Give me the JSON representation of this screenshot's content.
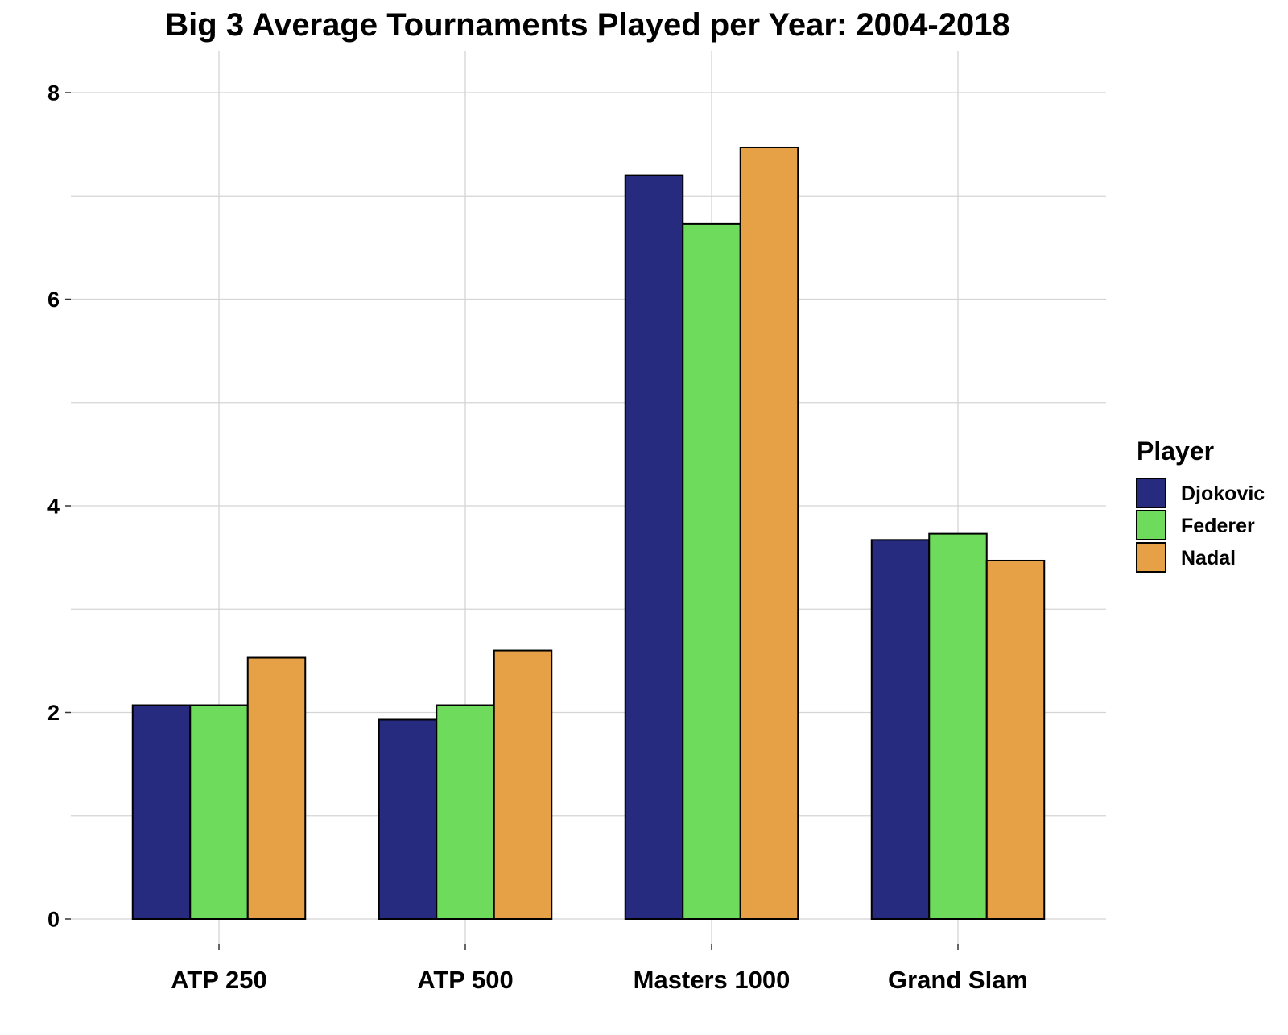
{
  "chart_data": {
    "type": "bar",
    "title": "Big 3 Average Tournaments Played per Year: 2004-2018",
    "xlabel": "",
    "ylabel": "",
    "categories": [
      "ATP 250",
      "ATP 500",
      "Masters 1000",
      "Grand Slam"
    ],
    "series": [
      {
        "name": "Djokovic",
        "color": "#262b80",
        "values": [
          2.07,
          1.93,
          7.2,
          3.67
        ]
      },
      {
        "name": "Federer",
        "color": "#6fdb5d",
        "values": [
          2.07,
          2.07,
          6.73,
          3.73
        ]
      },
      {
        "name": "Nadal",
        "color": "#e6a045",
        "values": [
          2.53,
          2.6,
          7.47,
          3.47
        ]
      }
    ],
    "ylim": [
      0,
      8
    ],
    "yticks": [
      "0",
      "2",
      "4",
      "6",
      "8"
    ],
    "grid": true,
    "legend": {
      "title": "Player",
      "position": "right"
    }
  }
}
